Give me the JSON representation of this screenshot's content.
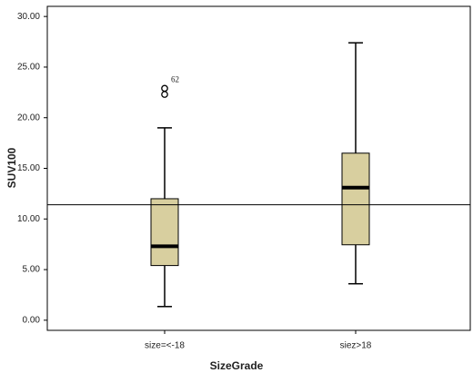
{
  "chart_data": {
    "type": "boxplot",
    "x_label": "SizeGrade",
    "y_label": "SUV100",
    "categories": [
      "size=<-18",
      "siez>18"
    ],
    "boxes": [
      {
        "min": 1.35,
        "q1": 5.4,
        "median": 7.3,
        "q3": 12.0,
        "max": 19.0,
        "outliers": [
          22.9,
          22.3
        ],
        "outlier_labels": [
          "62",
          null
        ]
      },
      {
        "min": 3.6,
        "q1": 7.45,
        "median": 13.1,
        "q3": 16.5,
        "max": 27.4,
        "outliers": [],
        "outlier_labels": []
      }
    ],
    "reference_line": 11.4,
    "color": "#d8cf9f",
    "ylim": [
      -1,
      31
    ],
    "yticks": [
      {
        "value": 0,
        "label": "0.00"
      },
      {
        "value": 5,
        "label": "5.00"
      },
      {
        "value": 10,
        "label": "10.00"
      },
      {
        "value": 15,
        "label": "15.00"
      },
      {
        "value": 20,
        "label": "20.00"
      },
      {
        "value": 25,
        "label": "25.00"
      },
      {
        "value": 30,
        "label": "30.00"
      }
    ]
  }
}
